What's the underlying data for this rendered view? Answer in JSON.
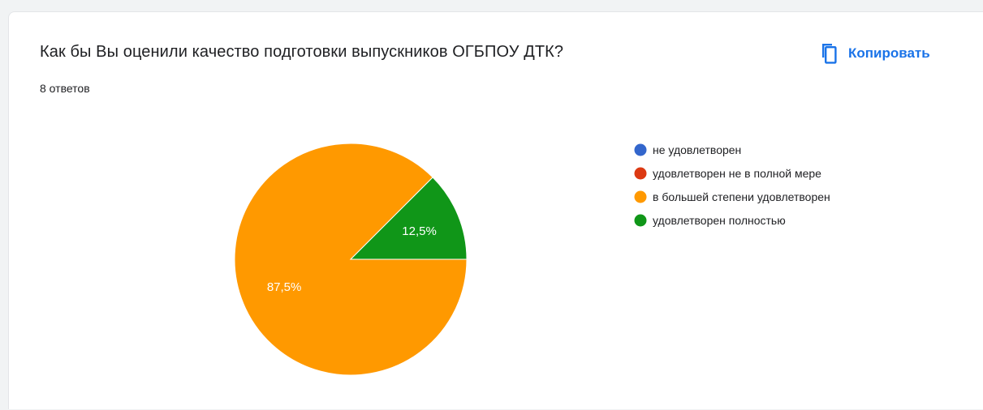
{
  "question": {
    "title": "Как бы Вы оценили качество подготовки выпускников ОГБПОУ ДТК?",
    "responses": "8 ответов"
  },
  "toolbar": {
    "copy_label": "Копировать",
    "copy_icon": "copy-icon",
    "accent_color": "#1a73e8"
  },
  "chart_data": {
    "type": "pie",
    "title": "",
    "legend_position": "right",
    "slices": [
      {
        "label": "не удовлетворен",
        "value": 0,
        "percent_label": "",
        "color": "#3366cc"
      },
      {
        "label": "удовлетворен не в полной мере",
        "value": 0,
        "percent_label": "",
        "color": "#dc3912"
      },
      {
        "label": "в большей степени удовлетворен",
        "value": 87.5,
        "percent_label": "87,5%",
        "color": "#ff9900"
      },
      {
        "label": "удовлетворен полностью",
        "value": 12.5,
        "percent_label": "12,5%",
        "color": "#109618"
      }
    ]
  }
}
